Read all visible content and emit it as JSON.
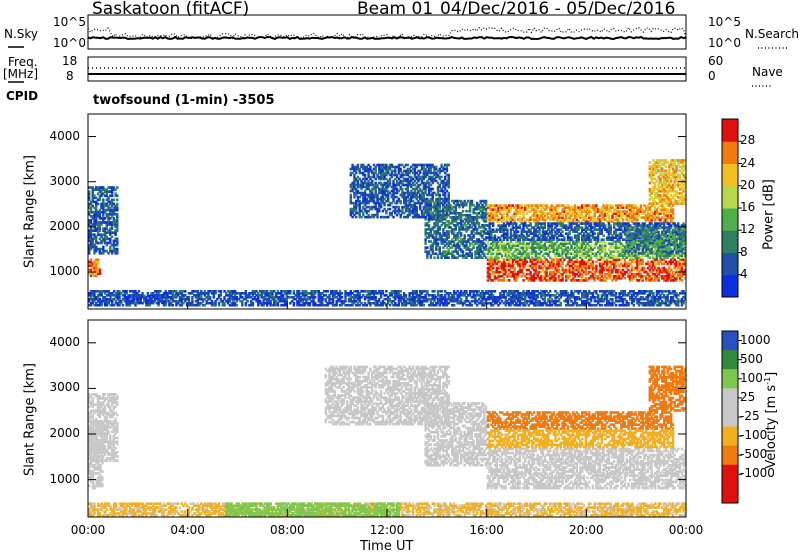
{
  "header": {
    "station": "Saskatoon (fitACF)",
    "beam": "Beam 01",
    "date_range": "04/Dec/2016 - 05/Dec/2016"
  },
  "top_panels": {
    "nsky_label": "N.Sky",
    "nsky_ticks": [
      "10^5",
      "10^0"
    ],
    "nsearch_label": "N.Search",
    "nsearch_ticks": [
      "10^5",
      "10^0"
    ],
    "freq_label": "Freq.",
    "freq_unit": "[MHz]",
    "freq_ticks": [
      "18",
      "8"
    ],
    "nave_label": "Nave",
    "nave_ticks": [
      "60",
      "0"
    ],
    "cpid_label": "CPID",
    "cpid_text": "twofsound (1-min) -3505"
  },
  "colors": {
    "power": [
      "#0a2fe0",
      "#1f4fa8",
      "#2e7f62",
      "#4fb04a",
      "#b8d84a",
      "#f0c020",
      "#f07a10",
      "#e01010"
    ],
    "velocity": [
      "#e01010",
      "#f07a10",
      "#f0b020",
      "#c8c8c8",
      "#c8c8c8",
      "#7ec850",
      "#2e8b3e",
      "#2850c0"
    ],
    "ground_scatter": "#c8c8c8"
  },
  "chart_data": [
    {
      "type": "heatmap",
      "name": "power",
      "ylabel": "Slant Range [km]",
      "xlim": [
        "00:00",
        "24:00"
      ],
      "ylim": [
        180,
        4500
      ],
      "y_ticks": [
        "1000",
        "2000",
        "3000",
        "4000"
      ],
      "colorbar_label": "Power [dB]",
      "colorbar_ticks": [
        "4",
        "8",
        "12",
        "16",
        "20",
        "24",
        "28"
      ],
      "colorbar_range": [
        0,
        32
      ],
      "regions": [
        {
          "t0": 0.0,
          "t1": 0.5,
          "r0": 900,
          "r1": 1300,
          "value": 26
        },
        {
          "t0": 0.0,
          "t1": 1.2,
          "r0": 1400,
          "r1": 2900,
          "value": 6
        },
        {
          "t0": 0.0,
          "t1": 24.0,
          "r0": 250,
          "r1": 600,
          "value": 5
        },
        {
          "t0": 1.5,
          "t1": 3.0,
          "r0": 300,
          "r1": 500,
          "value": 4
        },
        {
          "t0": 10.5,
          "t1": 14.5,
          "r0": 2200,
          "r1": 3400,
          "value": 6
        },
        {
          "t0": 13.5,
          "t1": 16.0,
          "r0": 1300,
          "r1": 2600,
          "value": 8
        },
        {
          "t0": 16.0,
          "t1": 24.0,
          "r0": 800,
          "r1": 1300,
          "value": 28
        },
        {
          "t0": 16.0,
          "t1": 24.0,
          "r0": 1300,
          "r1": 1700,
          "value": 14
        },
        {
          "t0": 16.0,
          "t1": 23.5,
          "r0": 2100,
          "r1": 2500,
          "value": 24
        },
        {
          "t0": 16.0,
          "t1": 24.0,
          "r0": 1700,
          "r1": 2100,
          "value": 6
        },
        {
          "t0": 22.5,
          "t1": 24.0,
          "r0": 2500,
          "r1": 3500,
          "value": 22
        },
        {
          "t0": 21.5,
          "t1": 24.0,
          "r0": 1400,
          "r1": 2000,
          "value": 10
        }
      ]
    },
    {
      "type": "heatmap",
      "name": "velocity",
      "xlabel": "Time UT",
      "ylabel": "Slant Range [km]",
      "xlim": [
        "00:00",
        "24:00"
      ],
      "x_ticks": [
        "00:00",
        "04:00",
        "08:00",
        "12:00",
        "16:00",
        "20:00",
        "00:00"
      ],
      "ylim": [
        180,
        4500
      ],
      "y_ticks": [
        "1000",
        "2000",
        "3000",
        "4000"
      ],
      "colorbar_label": "Velocity [m s-1]",
      "colorbar_ticks": [
        "1000",
        "500",
        "100",
        "25",
        "-25",
        "-100",
        "-500",
        "-1000"
      ],
      "regions": [
        {
          "t0": 0.0,
          "t1": 0.6,
          "r0": 800,
          "r1": 2300,
          "value": "gs"
        },
        {
          "t0": 0.0,
          "t1": 1.2,
          "r0": 1400,
          "r1": 2900,
          "value": "gs"
        },
        {
          "t0": 0.0,
          "t1": 24.0,
          "r0": 200,
          "r1": 500,
          "value": -30
        },
        {
          "t0": 5.5,
          "t1": 12.5,
          "r0": 200,
          "r1": 500,
          "value": 60
        },
        {
          "t0": 9.5,
          "t1": 14.5,
          "r0": 2200,
          "r1": 3500,
          "value": "gs"
        },
        {
          "t0": 13.5,
          "t1": 16.0,
          "r0": 1300,
          "r1": 2700,
          "value": "gs"
        },
        {
          "t0": 16.0,
          "t1": 24.0,
          "r0": 800,
          "r1": 1700,
          "value": "gs"
        },
        {
          "t0": 16.0,
          "t1": 23.5,
          "r0": 2100,
          "r1": 2500,
          "value": -300
        },
        {
          "t0": 16.0,
          "t1": 23.5,
          "r0": 1700,
          "r1": 2100,
          "value": -60
        },
        {
          "t0": 22.5,
          "t1": 24.0,
          "r0": 2500,
          "r1": 3500,
          "value": -200
        }
      ]
    }
  ]
}
